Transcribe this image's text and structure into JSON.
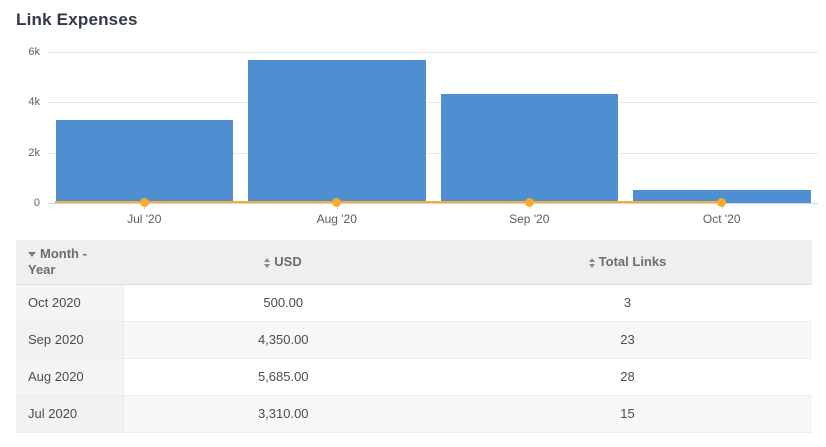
{
  "title": "Link Expenses",
  "chart_data": {
    "type": "bar",
    "title": "Link Expenses",
    "categories": [
      "Jul '20",
      "Aug '20",
      "Sep '20",
      "Oct '20"
    ],
    "series": [
      {
        "name": "USD",
        "type": "column",
        "color": "#4e8ed1",
        "values": [
          3310,
          5685,
          4350,
          500
        ]
      },
      {
        "name": "Total Links",
        "type": "line",
        "color": "#fbab2c",
        "values": [
          15,
          28,
          23,
          3
        ]
      }
    ],
    "xlabel": "",
    "ylabel": "",
    "ylim": [
      0,
      6000
    ],
    "yticks": [
      {
        "value": 0,
        "label": "0"
      },
      {
        "value": 2000,
        "label": "2k"
      },
      {
        "value": 4000,
        "label": "4k"
      },
      {
        "value": 6000,
        "label": "6k"
      }
    ],
    "grid": true,
    "legend_position": "none"
  },
  "table": {
    "columns": [
      {
        "label": "Month - Year",
        "sort_icon": "triangle-down",
        "sort_state": "desc"
      },
      {
        "label": "USD",
        "sort_icon": "triangle-up-down",
        "sort_state": "none"
      },
      {
        "label": "Total Links",
        "sort_icon": "triangle-up-down",
        "sort_state": "none"
      }
    ],
    "rows": [
      {
        "month_year": "Oct 2020",
        "usd": "500.00",
        "total_links": "3"
      },
      {
        "month_year": "Sep 2020",
        "usd": "4,350.00",
        "total_links": "23"
      },
      {
        "month_year": "Aug 2020",
        "usd": "5,685.00",
        "total_links": "28"
      },
      {
        "month_year": "Jul 2020",
        "usd": "3,310.00",
        "total_links": "15"
      }
    ]
  },
  "colors": {
    "bar": "#4e8ed1",
    "line": "#fbab2c",
    "grid": "#e6e6e6",
    "axis": "#ccd6eb",
    "title_text": "#323a45",
    "header_bg": "#f0efef"
  }
}
